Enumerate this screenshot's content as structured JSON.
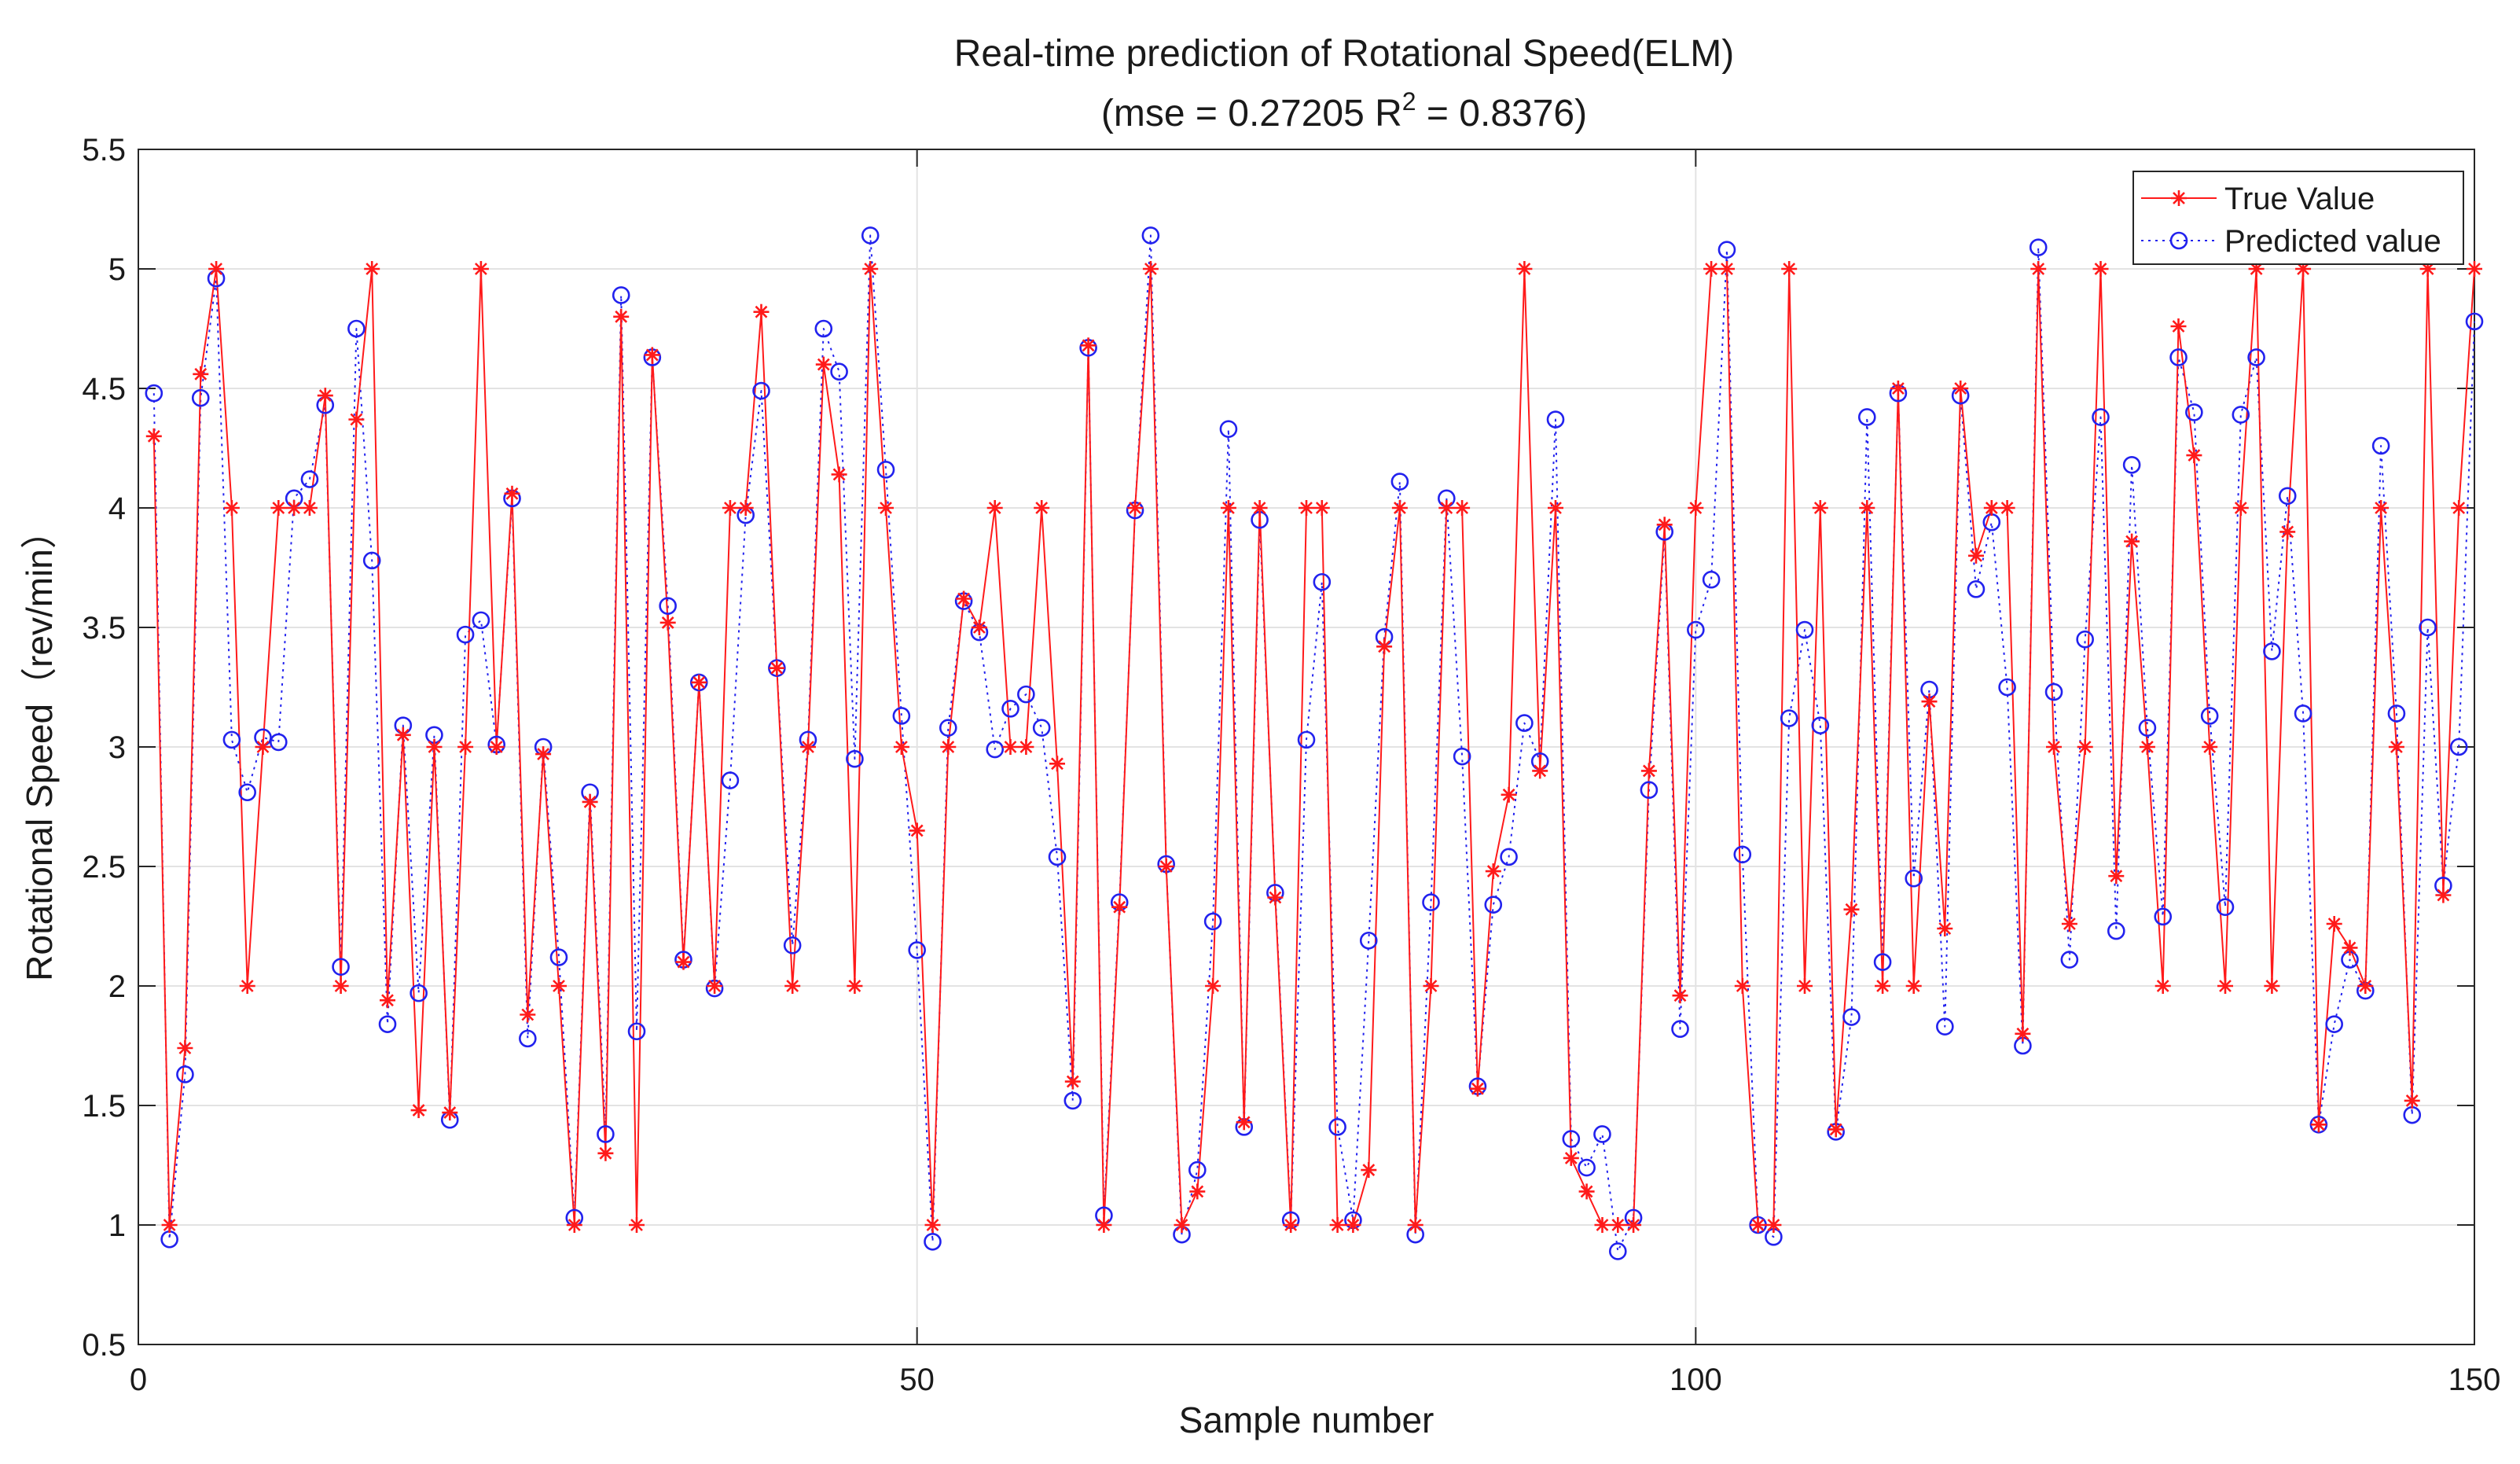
{
  "chart_data": {
    "type": "line",
    "title": "Real-time prediction of Rotational Speed(ELM)",
    "subtitle_prefix": "(mse = 0.27205 R",
    "subtitle_sup": "2",
    "subtitle_suffix": " = 0.8376)",
    "xlabel": "Sample number",
    "ylabel": "Rotational Speed（rev/min）",
    "xlim": [
      0,
      150
    ],
    "ylim": [
      0.5,
      5.5
    ],
    "xticks": [
      0,
      50,
      100,
      150
    ],
    "yticks": [
      0.5,
      1,
      1.5,
      2,
      2.5,
      3,
      3.5,
      4,
      4.5,
      5,
      5.5
    ],
    "grid": true,
    "legend_position": "top-right",
    "series": [
      {
        "name": "True Value",
        "color": "#ff1a1a",
        "marker": "asterisk",
        "line_style": "solid",
        "values": [
          4.3,
          1.0,
          1.74,
          4.56,
          5.0,
          4.0,
          2.0,
          3.0,
          4.0,
          4.0,
          4.0,
          4.47,
          2.0,
          4.37,
          5.0,
          1.94,
          3.05,
          1.48,
          3.0,
          1.47,
          3.0,
          5.0,
          3.0,
          4.06,
          1.88,
          2.97,
          2.0,
          1.0,
          2.77,
          1.3,
          4.8,
          1.0,
          4.64,
          3.52,
          2.1,
          3.27,
          2.0,
          4.0,
          4.0,
          4.82,
          3.33,
          2.0,
          3.0,
          4.6,
          4.14,
          2.0,
          5.0,
          4.0,
          3.0,
          2.65,
          1.0,
          3.0,
          3.62,
          3.5,
          4.0,
          3.0,
          3.0,
          4.0,
          2.93,
          1.6,
          4.68,
          1.0,
          2.33,
          4.0,
          5.0,
          2.5,
          1.0,
          1.14,
          2.0,
          4.0,
          1.43,
          4.0,
          2.37,
          1.0,
          4.0,
          4.0,
          1.0,
          1.0,
          1.23,
          3.42,
          4.0,
          1.0,
          2.0,
          4.0,
          4.0,
          1.57,
          2.48,
          2.8,
          5.0,
          2.9,
          4.0,
          1.28,
          1.14,
          1.0,
          1.0,
          1.0,
          2.9,
          3.93,
          1.96,
          4.0,
          5.0,
          5.0,
          2.0,
          1.0,
          1.0,
          5.0,
          2.0,
          4.0,
          1.4,
          2.32,
          4.0,
          2.0,
          4.5,
          2.0,
          3.19,
          2.24,
          4.5,
          3.8,
          4.0,
          4.0,
          1.8,
          5.0,
          3.0,
          2.26,
          3.0,
          5.0,
          2.46,
          3.86,
          3.0,
          2.0,
          4.76,
          4.22,
          3.0,
          2.0,
          4.0,
          5.0,
          2.0,
          3.9,
          5.0,
          1.42,
          2.26,
          2.16,
          2.0,
          4.0,
          3.0,
          1.52,
          5.0,
          2.38,
          4.0,
          5.0
        ]
      },
      {
        "name": "Predicted value",
        "color": "#2222ee",
        "marker": "circle",
        "line_style": "dotted",
        "values": [
          4.48,
          0.94,
          1.63,
          4.46,
          4.96,
          3.03,
          2.81,
          3.04,
          3.02,
          4.04,
          4.12,
          4.43,
          2.08,
          4.75,
          3.78,
          1.84,
          3.09,
          1.97,
          3.05,
          1.44,
          3.47,
          3.53,
          3.01,
          4.04,
          1.78,
          3.0,
          2.12,
          1.03,
          2.81,
          1.38,
          4.89,
          1.81,
          4.63,
          3.59,
          2.11,
          3.27,
          1.99,
          2.86,
          3.97,
          4.49,
          3.33,
          2.17,
          3.03,
          4.75,
          4.57,
          2.95,
          5.14,
          4.16,
          3.13,
          2.15,
          0.93,
          3.08,
          3.61,
          3.48,
          2.99,
          3.16,
          3.22,
          3.08,
          2.54,
          1.52,
          4.67,
          1.04,
          2.35,
          3.99,
          5.14,
          2.51,
          0.96,
          1.23,
          2.27,
          4.33,
          1.41,
          3.95,
          2.39,
          1.02,
          3.03,
          3.69,
          1.41,
          1.02,
          2.19,
          3.46,
          4.11,
          0.96,
          2.35,
          4.04,
          2.96,
          1.58,
          2.34,
          2.54,
          3.1,
          2.94,
          4.37,
          1.36,
          1.24,
          1.38,
          0.89,
          1.03,
          2.82,
          3.9,
          1.82,
          3.49,
          3.7,
          5.08,
          2.55,
          1.0,
          0.95,
          3.12,
          3.49,
          3.09,
          1.39,
          1.87,
          4.38,
          2.1,
          4.48,
          2.45,
          3.24,
          1.83,
          4.47,
          3.66,
          3.94,
          3.25,
          1.75,
          5.09,
          3.23,
          2.11,
          3.45,
          4.38,
          2.23,
          4.18,
          3.08,
          2.29,
          4.63,
          4.4,
          3.13,
          2.33,
          4.39,
          4.63,
          3.4,
          4.05,
          3.14,
          1.42,
          1.84,
          2.11,
          1.98,
          4.26,
          3.14,
          1.46,
          3.5,
          2.42,
          3.0,
          4.78
        ]
      }
    ]
  }
}
